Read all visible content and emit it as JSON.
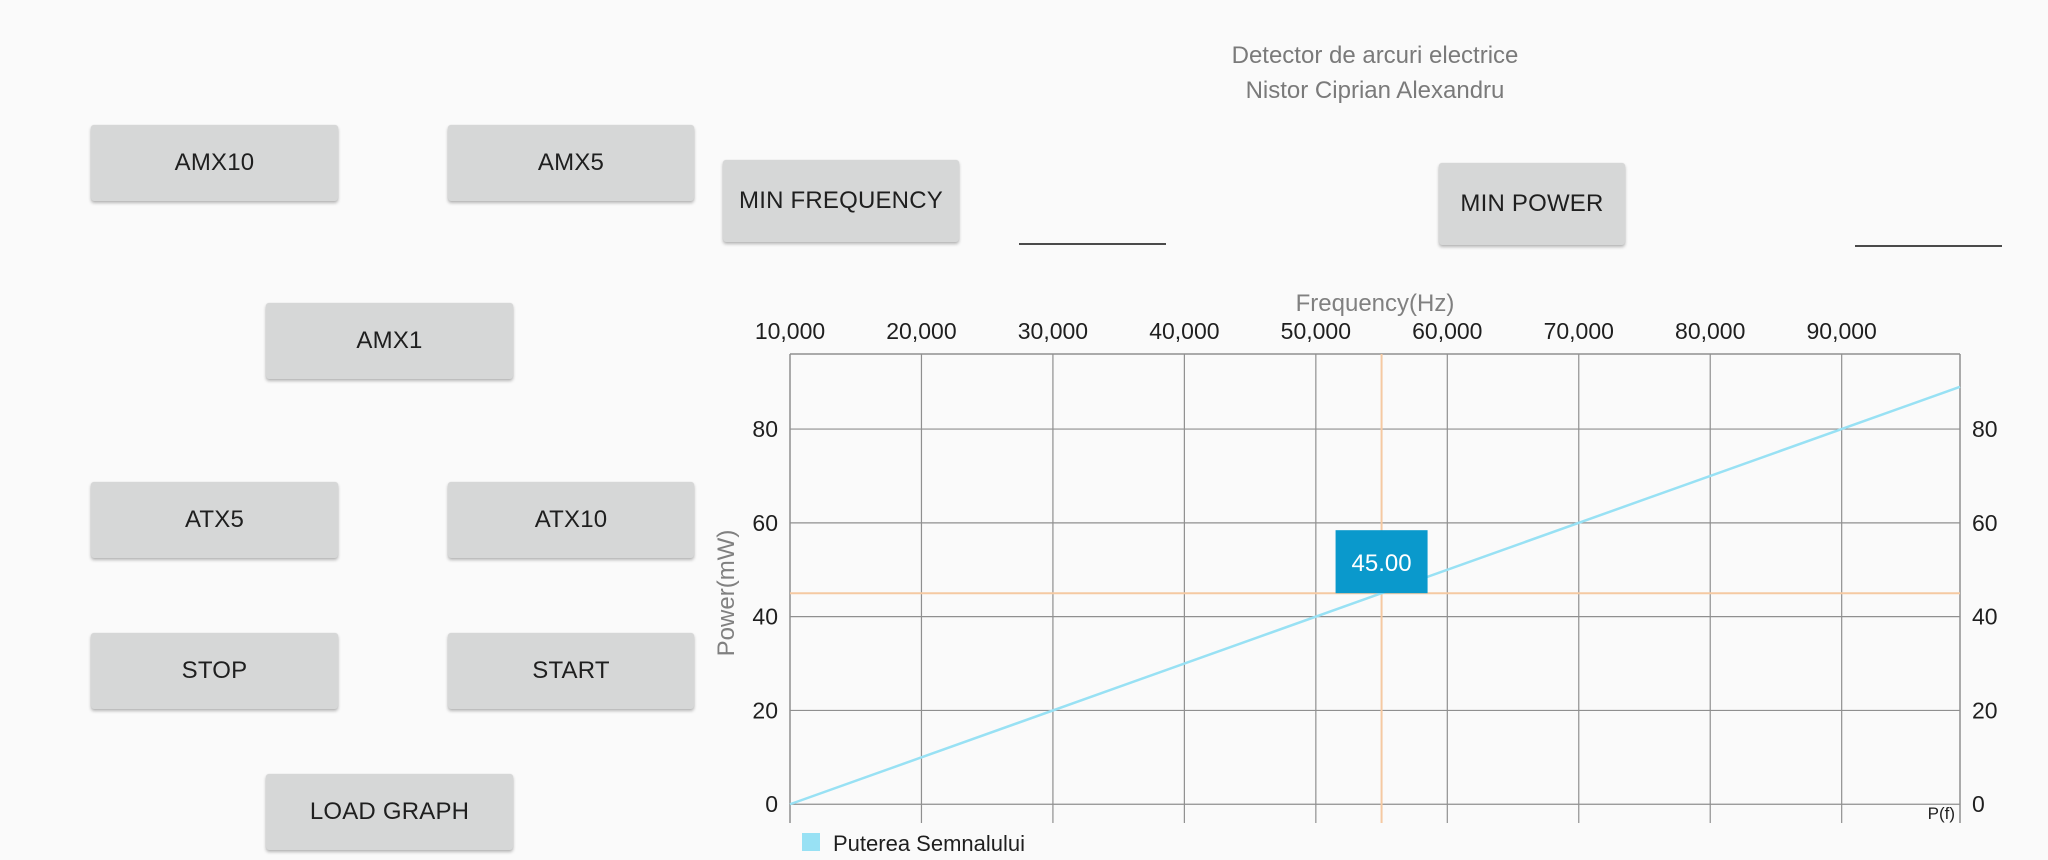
{
  "header": {
    "title_line1": "Detector de arcuri electrice",
    "title_line2": "Nistor Ciprian Alexandru"
  },
  "buttons": {
    "amx10": "AMX10",
    "amx5": "AMX5",
    "amx1": "AMX1",
    "atx5": "ATX5",
    "atx10": "ATX10",
    "stop": "STOP",
    "start": "START",
    "load_graph": "LOAD GRAPH",
    "min_frequency": "MIN FREQUENCY",
    "min_power": "MIN POWER"
  },
  "fields": {
    "min_frequency_value": "",
    "min_power_value": ""
  },
  "chart_data": {
    "type": "line",
    "xlabel": "Frequency(Hz)",
    "ylabel": "Power(mW)",
    "xlim": [
      10000,
      99000
    ],
    "ylim": [
      -4,
      96
    ],
    "x_ticks": [
      10000,
      20000,
      30000,
      40000,
      50000,
      60000,
      70000,
      80000,
      90000
    ],
    "x_tick_labels": [
      "10,000",
      "20,000",
      "30,000",
      "40,000",
      "50,000",
      "60,000",
      "70,000",
      "80,000",
      "90,000"
    ],
    "y_ticks": [
      0,
      20,
      40,
      60,
      80
    ],
    "y_tick_labels": [
      "0",
      "20",
      "40",
      "60",
      "80"
    ],
    "x_axis_position": "top",
    "y_axis_position": "both",
    "grid": true,
    "legend_position": "bottom-left",
    "series": [
      {
        "name": "Puterea Semnalului",
        "color": "#98e1f4",
        "x": [
          10000,
          99000
        ],
        "y": [
          0,
          89
        ]
      }
    ],
    "highlight": {
      "x": 55000,
      "y": 45,
      "label": "45.00",
      "color": "#f5c9a2",
      "marker_color": "#0a99cc"
    },
    "corner_label": "P(f)",
    "grid_color": "#8f8f8f",
    "axis_text_color": "#1f1f1f",
    "label_text_color": "#808080"
  }
}
